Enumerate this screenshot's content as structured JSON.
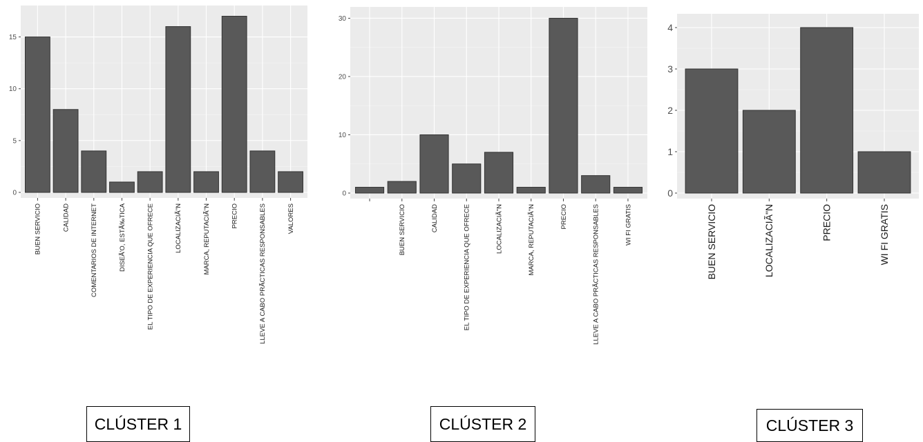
{
  "chart_data": [
    {
      "type": "bar",
      "categories": [
        "BUEN SERVICIO",
        "CALIDAD",
        "COMENTARIOS DE INTERNET",
        "DISEÃ'O, ESTÃ‰TICA",
        "EL TIPO DE EXPERIENCIA QUE OFRECE",
        "LOCALIZACIÃ\"N",
        "MARCA, REPUTACIÃ\"N",
        "PRECIO",
        "LLEVE A CABO PRÃCTICAS RESPONSABLES",
        "VALORES"
      ],
      "values": [
        15,
        8,
        4,
        1,
        2,
        16,
        2,
        17,
        4,
        2
      ],
      "ylim": [
        0,
        17.5
      ],
      "yticks": [
        "0",
        "5",
        "10",
        "15"
      ],
      "grid": true,
      "caption": "CLÚSTER 1"
    },
    {
      "type": "bar",
      "categories": [
        "",
        "BUEN SERVICIO",
        "CALIDAD",
        "EL TIPO DE EXPERIENCIA QUE OFRECE",
        "LOCALIZACIÃ\"N",
        "MARCA, REPUTACIÃ\"N",
        "PRECIO",
        "LLEVE A CABO PRÃCTICAS RESPONSABLES",
        "WI FI GRATIS"
      ],
      "values": [
        1,
        2,
        10,
        5,
        7,
        1,
        30,
        3,
        1
      ],
      "ylim": [
        0,
        31
      ],
      "yticks": [
        "0",
        "10",
        "20",
        "30"
      ],
      "grid": true,
      "caption": "CLÚSTER 2"
    },
    {
      "type": "bar",
      "categories": [
        "BUEN SERVICIO",
        "LOCALIZACIÃ\"N",
        "PRECIO",
        "WI FI GRATIS"
      ],
      "values": [
        3,
        2,
        4,
        1
      ],
      "ylim": [
        0,
        4.2
      ],
      "yticks": [
        "0",
        "1",
        "2",
        "3",
        "4"
      ],
      "grid": true,
      "caption": "CLÚSTER 3"
    }
  ]
}
